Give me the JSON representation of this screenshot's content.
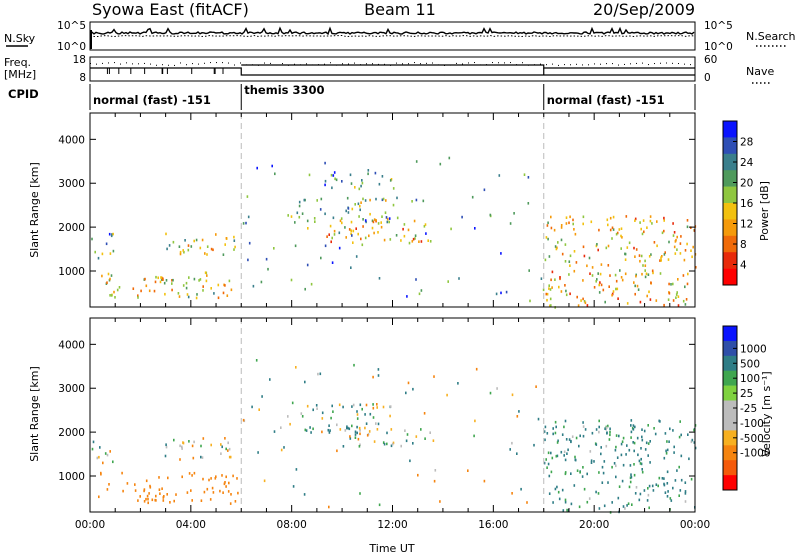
{
  "header": {
    "station": "Syowa East (fitACF)",
    "beam": "Beam 11",
    "date": "20/Sep/2009"
  },
  "side_labels": {
    "nsky": "N.Sky",
    "nsearch": "N.Search",
    "freq_line1": "Freq.",
    "freq_line2": "[MHz]",
    "nave": "Nave",
    "cpid": "CPID"
  },
  "panel_ticks": {
    "nsky_top": "10^5",
    "nsky_bottom": "10^0",
    "freq_top": "18",
    "freq_bottom": "8",
    "nave_top": "60",
    "nave_bottom": "0"
  },
  "colors": {
    "power_scale": [
      "#0a14ff",
      "#2f4fb5",
      "#3a7f8c",
      "#4f9a5c",
      "#8fc63f",
      "#f2c10f",
      "#f59a0a",
      "#f06a08",
      "#e82a0a",
      "#ff0000"
    ],
    "velocity_scale": [
      "#ff0000",
      "#f55a0a",
      "#f5840f",
      "#f7b020",
      "#bcbcbc",
      "#bcbcbc",
      "#7fd23f",
      "#3fa64f",
      "#2f7d86",
      "#2f4fa8",
      "#0a14ff"
    ]
  },
  "chart_data": [
    {
      "type": "heatmap",
      "name": "power",
      "xlabel": "",
      "ylabel": "Slant Range [km]",
      "xlim_hours": [
        0,
        24
      ],
      "ylim": [
        180,
        4600
      ],
      "yticks": [
        1000,
        2000,
        3000,
        4000
      ],
      "colorbar": {
        "label": "Power [dB]",
        "range": [
          0,
          32
        ],
        "ticks": [
          4,
          8,
          12,
          16,
          20,
          24,
          28
        ]
      },
      "echo_regions": [
        {
          "t": [
            0.0,
            0.9
          ],
          "r": [
            1300,
            1900
          ],
          "intensity": 0.3
        },
        {
          "t": [
            0.3,
            5.9
          ],
          "r": [
            400,
            1000
          ],
          "intensity": 0.55
        },
        {
          "t": [
            2.8,
            5.8
          ],
          "r": [
            1400,
            1900
          ],
          "intensity": 0.5
        },
        {
          "t": [
            5.9,
            6.3
          ],
          "r": [
            2100,
            2400
          ],
          "intensity": 0.4
        },
        {
          "t": [
            7.8,
            11.9
          ],
          "r": [
            2000,
            2700
          ],
          "intensity": 0.4
        },
        {
          "t": [
            9.3,
            13.7
          ],
          "r": [
            1600,
            2200
          ],
          "intensity": 0.65
        },
        {
          "t": [
            9.2,
            12.1
          ],
          "r": [
            2900,
            3300
          ],
          "intensity": 0.3
        },
        {
          "t": [
            18.0,
            24.0
          ],
          "r": [
            200,
            2300
          ],
          "intensity": 0.6
        }
      ]
    },
    {
      "type": "heatmap",
      "name": "velocity",
      "xlabel": "Time UT",
      "ylabel": "Slant Range [km]",
      "xlim_hours": [
        0,
        24
      ],
      "xticks": [
        "00:00",
        "04:00",
        "08:00",
        "12:00",
        "16:00",
        "20:00",
        "00:00"
      ],
      "ylim": [
        180,
        4600
      ],
      "yticks": [
        1000,
        2000,
        3000,
        4000
      ],
      "colorbar": {
        "label": "Velocity [m s⁻¹]",
        "ticks": [
          "-1000",
          "-500",
          "-100",
          "-25",
          "25",
          "100",
          "500",
          "1000"
        ]
      },
      "echo_regions": [
        {
          "t": [
            0.0,
            0.9
          ],
          "r": [
            1300,
            1900
          ],
          "velocity": -20
        },
        {
          "t": [
            0.3,
            5.9
          ],
          "r": [
            400,
            1100
          ],
          "velocity": -300
        },
        {
          "t": [
            2.8,
            5.8
          ],
          "r": [
            1400,
            1900
          ],
          "velocity": 0
        },
        {
          "t": [
            7.8,
            11.9
          ],
          "r": [
            2000,
            2700
          ],
          "velocity": 50
        },
        {
          "t": [
            9.3,
            13.7
          ],
          "r": [
            1700,
            2100
          ],
          "velocity": 0
        },
        {
          "t": [
            18.0,
            24.0
          ],
          "r": [
            200,
            2300
          ],
          "velocity": 150
        }
      ]
    }
  ],
  "cpid_segments": [
    {
      "label": "normal (fast) -151",
      "start_hour": 0,
      "end_hour": 6.0
    },
    {
      "label": "themis 3300",
      "start_hour": 6.0,
      "end_hour": 18.0
    },
    {
      "label": "normal (fast) -151",
      "start_hour": 18.0,
      "end_hour": 24.0
    }
  ],
  "mode_change_hours": [
    6.0,
    18.0
  ]
}
